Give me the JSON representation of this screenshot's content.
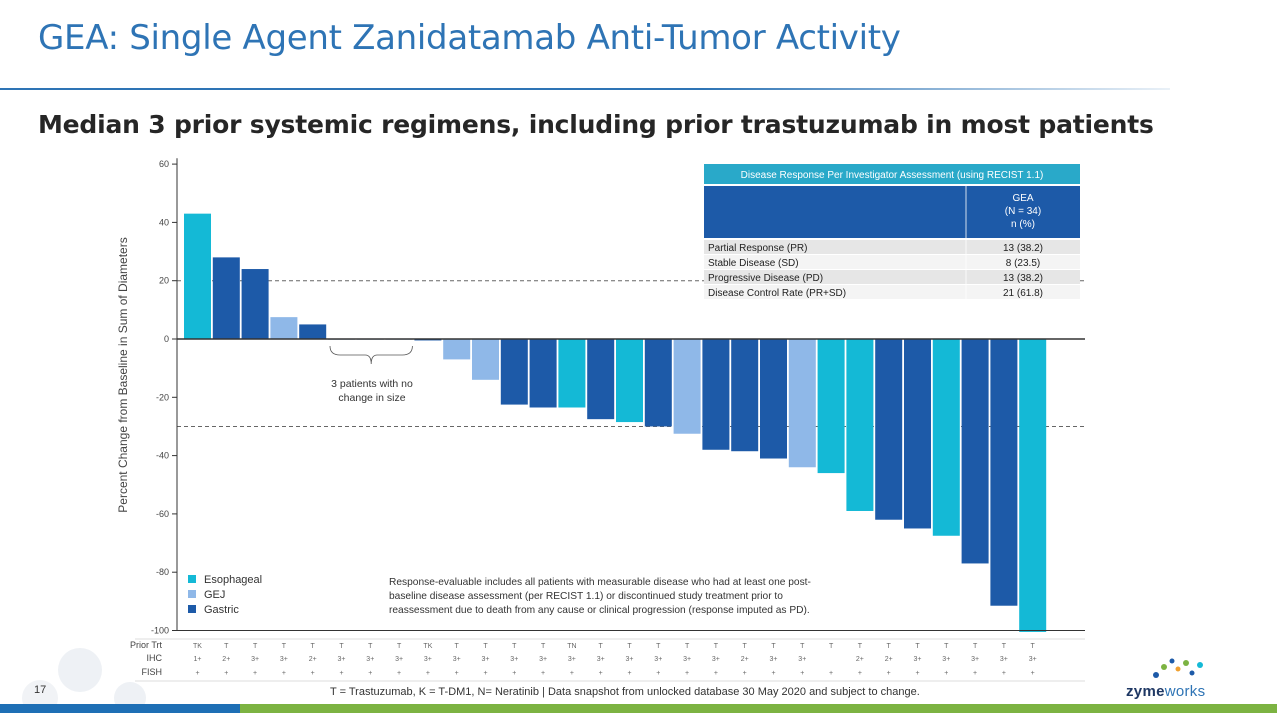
{
  "slide": {
    "title": "GEA: Single Agent Zanidatamab Anti-Tumor Activity",
    "subtitle": "Median 3 prior systemic regimens, including prior trastuzumab in most patients",
    "slide_number": "17",
    "footnote": "T = Trastuzumab, K = T-DM1, N= Neratinib | Data snapshot from unlocked database 30 May 2020 and subject to change.",
    "logo_bold": "zyme",
    "logo_light": "works"
  },
  "colors": {
    "Esophageal": "#14b9d6",
    "GEJ": "#8fb8e8",
    "Gastric": "#1d5aa8",
    "title": "#2e74b5",
    "table_header": "#1d5aa8",
    "table_title": "#29a9c9"
  },
  "annotations": {
    "no_change": "3 patients with no\nchange in size",
    "note": "Response-evaluable includes all patients with measurable disease who had at least one post-\nbaseline disease assessment (per RECIST 1.1) or discontinued study treatment prior to\nreassessment due to death from any cause or clinical progression (response imputed as PD)."
  },
  "response_table": {
    "title": "Disease Response Per Investigator Assessment (using RECIST 1.1)",
    "column_header": [
      "GEA",
      "(N = 34)",
      "n (%)"
    ],
    "rows": [
      {
        "label": "Partial Response (PR)",
        "value": "13 (38.2)"
      },
      {
        "label": "Stable Disease (SD)",
        "value": "8 (23.5)"
      },
      {
        "label": "Progressive Disease (PD)",
        "value": "13 (38.2)"
      },
      {
        "label": "Disease Control Rate (PR+SD)",
        "value": "21 (61.8)"
      }
    ]
  },
  "chart_data": {
    "type": "bar",
    "ylabel": "Percent Change from Baseline in Sum of Diameters",
    "ylim": [
      -100,
      62
    ],
    "yticks": [
      60,
      40,
      20,
      0,
      -20,
      -40,
      -60,
      -80,
      -100
    ],
    "reference_lines": [
      20,
      -30
    ],
    "legend": [
      "Esophageal",
      "GEJ",
      "Gastric"
    ],
    "legend_position": "bottom-left",
    "values": [
      43,
      28,
      24,
      7.5,
      5,
      0,
      0,
      0,
      -0.5,
      -7,
      -14,
      -22.5,
      -23.5,
      -23.5,
      -27.5,
      -28.5,
      -30,
      -32.5,
      -38,
      -38.5,
      -41,
      -44,
      -46,
      -59,
      -62,
      -65,
      -67.5,
      -77,
      -91.5,
      -100.5
    ],
    "series_type": [
      "Esophageal",
      "Gastric",
      "Gastric",
      "GEJ",
      "Gastric",
      "Gastric",
      "Gastric",
      "Gastric",
      "Gastric",
      "GEJ",
      "GEJ",
      "Gastric",
      "Gastric",
      "Esophageal",
      "Gastric",
      "Esophageal",
      "Gastric",
      "GEJ",
      "Gastric",
      "Gastric",
      "Gastric",
      "GEJ",
      "Esophageal",
      "Esophageal",
      "Gastric",
      "Gastric",
      "Esophageal",
      "Gastric",
      "Gastric",
      "Esophageal"
    ],
    "row_labels": [
      "Prior Trt",
      "IHC",
      "FISH"
    ],
    "prior_trt": [
      "TK",
      "T",
      "T",
      "T",
      "T",
      "T",
      "T",
      "T",
      "TK",
      "T",
      "T",
      "T",
      "T",
      "TN",
      "T",
      "T",
      "T",
      "T",
      "T",
      "T",
      "T",
      "T",
      "T",
      "T",
      "T",
      "T",
      "T",
      "T",
      "T",
      "T"
    ],
    "ihc": [
      "1+",
      "2+",
      "3+",
      "3+",
      "2+",
      "3+",
      "3+",
      "3+",
      "3+",
      "3+",
      "3+",
      "3+",
      "3+",
      "3+",
      "3+",
      "3+",
      "3+",
      "3+",
      "3+",
      "2+",
      "3+",
      "3+",
      "",
      "2+",
      "2+",
      "3+",
      "3+",
      "3+",
      "3+",
      "3+"
    ],
    "fish": [
      "+",
      "+",
      "+",
      "+",
      "+",
      "+",
      "+",
      "+",
      "+",
      "+",
      "+",
      "+",
      "+",
      "+",
      "+",
      "+",
      "+",
      "+",
      "+",
      "+",
      "+",
      "+",
      "+",
      "+",
      "+",
      "+",
      "+",
      "+",
      "+",
      "+"
    ]
  }
}
